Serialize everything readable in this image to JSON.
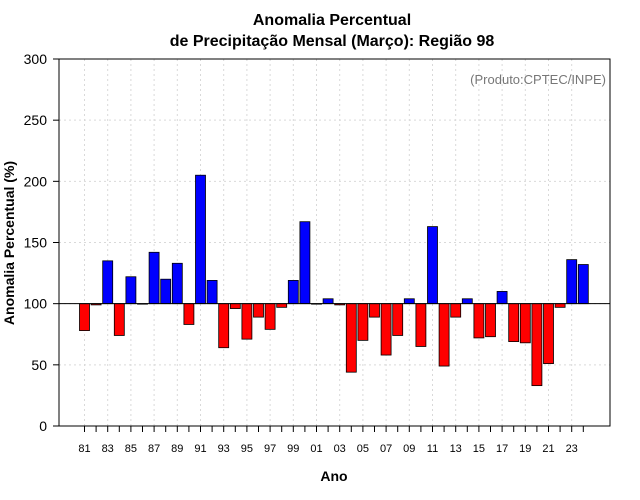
{
  "chart_data": {
    "type": "bar",
    "title_line1": "Anomalia Percentual",
    "title_line2": "de Precipitação Mensal (Março): Região 98",
    "xlabel": "Ano",
    "ylabel": "Anomalia Percentual (%)",
    "credit": "(Produto:CPTEC/INPE)",
    "ylim": [
      0,
      300
    ],
    "baseline": 100,
    "yticks": [
      0,
      50,
      100,
      150,
      200,
      250,
      300
    ],
    "grid": true,
    "colors": {
      "above": "#0000ff",
      "below": "#ff0000",
      "edge": "#000000",
      "grid": "#d9d9d9"
    },
    "categories": [
      "81",
      "82",
      "83",
      "84",
      "85",
      "86",
      "87",
      "88",
      "89",
      "90",
      "91",
      "92",
      "93",
      "94",
      "95",
      "96",
      "97",
      "98",
      "99",
      "00",
      "01",
      "02",
      "03",
      "04",
      "05",
      "06",
      "07",
      "08",
      "09",
      "10",
      "11",
      "12",
      "13",
      "14",
      "15",
      "16",
      "17",
      "18",
      "19",
      "20",
      "21",
      "22",
      "23",
      "24"
    ],
    "xtick_labels": [
      "81",
      "83",
      "85",
      "87",
      "89",
      "91",
      "93",
      "95",
      "97",
      "99",
      "01",
      "03",
      "05",
      "07",
      "09",
      "11",
      "13",
      "15",
      "17",
      "19",
      "21",
      "23"
    ],
    "values": [
      78,
      99,
      135,
      74,
      122,
      100,
      142,
      120,
      133,
      83,
      205,
      119,
      64,
      96,
      71,
      89,
      79,
      97,
      119,
      167,
      100,
      104,
      99,
      44,
      70,
      89,
      58,
      74,
      104,
      65,
      163,
      49,
      89,
      104,
      72,
      73,
      110,
      69,
      68,
      33,
      51,
      97,
      136,
      132
    ]
  }
}
